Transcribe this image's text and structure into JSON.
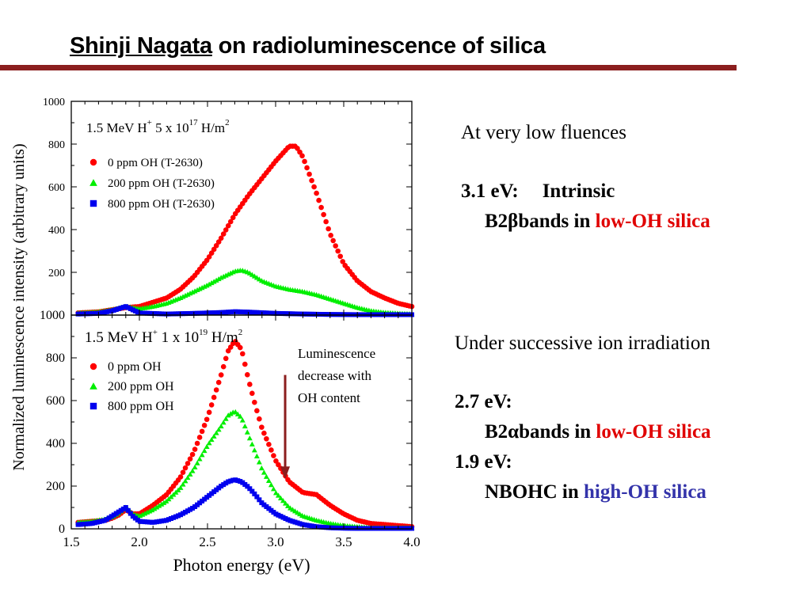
{
  "title": {
    "name": "Shinji Nagata",
    "rest": " on radioluminescence of silica",
    "rule_color": "#8b1e1e"
  },
  "notes": {
    "low_fluence_heading": "At very low fluences",
    "b31_energy": "3.1 eV:",
    "b31_label": "Intrinsic",
    "b31_band": "B2βbands in ",
    "b31_material": "low-OH silica",
    "successive_heading": "Under successive ion irradiation",
    "b27_energy": "2.7 eV:",
    "b27_band": "B2αbands  in  ",
    "b27_material": "low-OH silica",
    "b19_energy": "1.9 eV:",
    "b19_band": "NBOHC  in  ",
    "b19_material": "high-OH silica"
  },
  "chart_data": [
    {
      "type": "scatter",
      "panel": "top",
      "annotation": {
        "base": "1.5 MeV H",
        "sup1": "+",
        "mid": "  5 x 10",
        "sup2": "17",
        "unit": " H/m",
        "sup3": "2"
      },
      "xlim": [
        1.5,
        4.0
      ],
      "ylim": [
        0,
        1000
      ],
      "yticks": [
        0,
        200,
        400,
        600,
        800,
        1000
      ],
      "ytick_labels": [
        "",
        "200",
        "400",
        "600",
        "800",
        "1000"
      ],
      "legend_position": "top-left",
      "series": [
        {
          "name": "0 ppm OH (T-2630)",
          "color": "#ff0000",
          "marker": "circle",
          "x": [
            1.55,
            1.7,
            1.8,
            1.9,
            2.0,
            2.1,
            2.2,
            2.3,
            2.4,
            2.5,
            2.6,
            2.7,
            2.8,
            2.9,
            3.0,
            3.1,
            3.15,
            3.2,
            3.3,
            3.4,
            3.5,
            3.6,
            3.7,
            3.8,
            3.9,
            4.0
          ],
          "y": [
            10,
            15,
            25,
            35,
            40,
            60,
            80,
            120,
            180,
            260,
            360,
            470,
            560,
            640,
            720,
            790,
            790,
            740,
            570,
            380,
            240,
            160,
            110,
            80,
            55,
            40
          ]
        },
        {
          "name": "200 ppm OH (T-2630)",
          "color": "#00ee00",
          "marker": "triangle",
          "x": [
            1.55,
            1.7,
            1.8,
            1.9,
            2.0,
            2.1,
            2.2,
            2.3,
            2.4,
            2.5,
            2.6,
            2.7,
            2.75,
            2.8,
            2.9,
            3.0,
            3.1,
            3.2,
            3.3,
            3.4,
            3.5,
            3.6,
            3.7,
            3.8,
            3.9,
            4.0
          ],
          "y": [
            10,
            15,
            25,
            40,
            30,
            40,
            55,
            80,
            110,
            140,
            175,
            205,
            210,
            200,
            160,
            135,
            120,
            110,
            95,
            75,
            55,
            35,
            20,
            12,
            8,
            5
          ]
        },
        {
          "name": "800 ppm OH (T-2630)",
          "color": "#0000ee",
          "marker": "square",
          "x": [
            1.55,
            1.7,
            1.8,
            1.9,
            2.0,
            2.2,
            2.4,
            2.6,
            2.7,
            2.8,
            3.0,
            3.2,
            3.4,
            3.6,
            3.8,
            4.0
          ],
          "y": [
            5,
            8,
            20,
            40,
            10,
            5,
            8,
            12,
            16,
            14,
            8,
            5,
            3,
            2,
            2,
            2
          ]
        }
      ]
    },
    {
      "type": "scatter",
      "panel": "bottom",
      "annotation": {
        "base": "1.5 MeV H",
        "sup1": "+",
        "mid": " 1 x 10",
        "sup2": "19",
        "unit": " H/m",
        "sup3": "2"
      },
      "xlabel": "Photon energy (eV)",
      "ylabel": "Normalized luminescence intensity (arbitrary units)",
      "xlim": [
        1.5,
        4.0
      ],
      "xticks": [
        1.5,
        2.0,
        2.5,
        3.0,
        3.5,
        4.0
      ],
      "xtick_labels": [
        "1.5",
        "2.0",
        "2.5",
        "3.0",
        "3.5",
        "4.0"
      ],
      "ylim": [
        0,
        1000
      ],
      "yticks": [
        0,
        200,
        400,
        600,
        800,
        1000
      ],
      "ytick_labels": [
        "0",
        "200",
        "400",
        "600",
        "800",
        "1000"
      ],
      "legend_position": "top-left",
      "arrow_label": [
        "Luminescence",
        "decrease with",
        "OH content"
      ],
      "arrow_x": 3.07,
      "arrow_y": [
        720,
        240
      ],
      "series": [
        {
          "name": "0 ppm OH",
          "color": "#ff0000",
          "marker": "circle",
          "x": [
            1.55,
            1.65,
            1.75,
            1.8,
            1.85,
            1.9,
            1.95,
            2.0,
            2.1,
            2.2,
            2.3,
            2.4,
            2.5,
            2.6,
            2.65,
            2.7,
            2.75,
            2.8,
            2.85,
            2.9,
            3.0,
            3.1,
            3.2,
            3.3,
            3.4,
            3.5,
            3.6,
            3.7,
            3.8,
            3.9,
            4.0
          ],
          "y": [
            30,
            35,
            40,
            50,
            65,
            90,
            70,
            70,
            110,
            160,
            240,
            360,
            520,
            720,
            830,
            880,
            840,
            700,
            580,
            470,
            320,
            220,
            170,
            160,
            110,
            70,
            40,
            25,
            20,
            15,
            10
          ]
        },
        {
          "name": "200 ppm OH",
          "color": "#00ee00",
          "marker": "triangle",
          "x": [
            1.55,
            1.65,
            1.75,
            1.8,
            1.85,
            1.9,
            1.95,
            2.0,
            2.1,
            2.2,
            2.3,
            2.4,
            2.5,
            2.6,
            2.65,
            2.7,
            2.75,
            2.8,
            2.85,
            2.9,
            3.0,
            3.1,
            3.2,
            3.3,
            3.4,
            3.5,
            3.6,
            3.7,
            3.8,
            3.9,
            4.0
          ],
          "y": [
            30,
            35,
            45,
            55,
            75,
            100,
            70,
            60,
            90,
            130,
            190,
            280,
            390,
            480,
            530,
            550,
            520,
            440,
            360,
            280,
            170,
            100,
            60,
            40,
            25,
            15,
            10,
            5,
            5,
            5,
            5
          ]
        },
        {
          "name": "800 ppm OH",
          "color": "#0000ee",
          "marker": "square",
          "x": [
            1.55,
            1.65,
            1.75,
            1.8,
            1.85,
            1.9,
            1.95,
            2.0,
            2.1,
            2.2,
            2.3,
            2.4,
            2.5,
            2.6,
            2.65,
            2.7,
            2.75,
            2.8,
            2.85,
            2.9,
            3.0,
            3.1,
            3.2,
            3.3,
            3.4,
            3.5,
            3.6,
            3.7,
            3.8,
            3.9,
            4.0
          ],
          "y": [
            20,
            25,
            40,
            60,
            80,
            100,
            60,
            35,
            30,
            40,
            65,
            100,
            150,
            200,
            220,
            230,
            220,
            195,
            160,
            120,
            70,
            40,
            20,
            10,
            5,
            3,
            2,
            2,
            2,
            2,
            2
          ]
        }
      ]
    }
  ]
}
